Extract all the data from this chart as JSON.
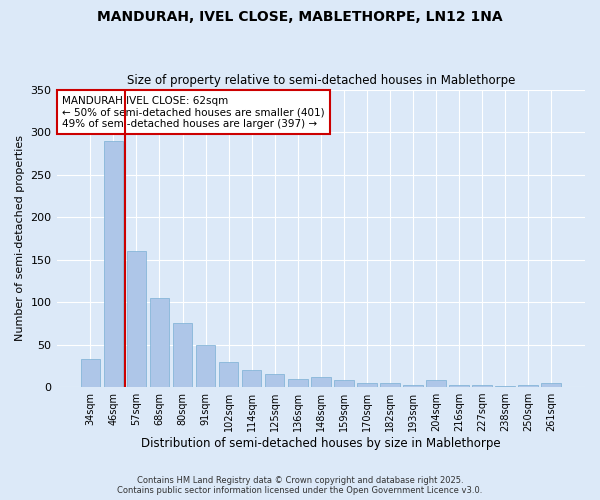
{
  "title": "MANDURAH, IVEL CLOSE, MABLETHORPE, LN12 1NA",
  "subtitle": "Size of property relative to semi-detached houses in Mablethorpe",
  "xlabel": "Distribution of semi-detached houses by size in Mablethorpe",
  "ylabel": "Number of semi-detached properties",
  "categories": [
    "34sqm",
    "46sqm",
    "57sqm",
    "68sqm",
    "80sqm",
    "91sqm",
    "102sqm",
    "114sqm",
    "125sqm",
    "136sqm",
    "148sqm",
    "159sqm",
    "170sqm",
    "182sqm",
    "193sqm",
    "204sqm",
    "216sqm",
    "227sqm",
    "238sqm",
    "250sqm",
    "261sqm"
  ],
  "values": [
    33,
    290,
    160,
    105,
    75,
    50,
    30,
    20,
    15,
    10,
    12,
    8,
    5,
    5,
    3,
    8,
    2,
    2,
    1,
    2,
    5
  ],
  "bar_color": "#aec6e8",
  "bar_edge_color": "#7aafd4",
  "vline_x": 2,
  "vline_color": "#cc0000",
  "annotation_text": "MANDURAH IVEL CLOSE: 62sqm\n← 50% of semi-detached houses are smaller (401)\n49% of semi-detached houses are larger (397) →",
  "annotation_box_color": "#ffffff",
  "annotation_box_edge": "#cc0000",
  "background_color": "#dce9f8",
  "footer_text": "Contains HM Land Registry data © Crown copyright and database right 2025.\nContains public sector information licensed under the Open Government Licence v3.0.",
  "ylim": [
    0,
    350
  ],
  "yticks": [
    0,
    50,
    100,
    150,
    200,
    250,
    300,
    350
  ]
}
